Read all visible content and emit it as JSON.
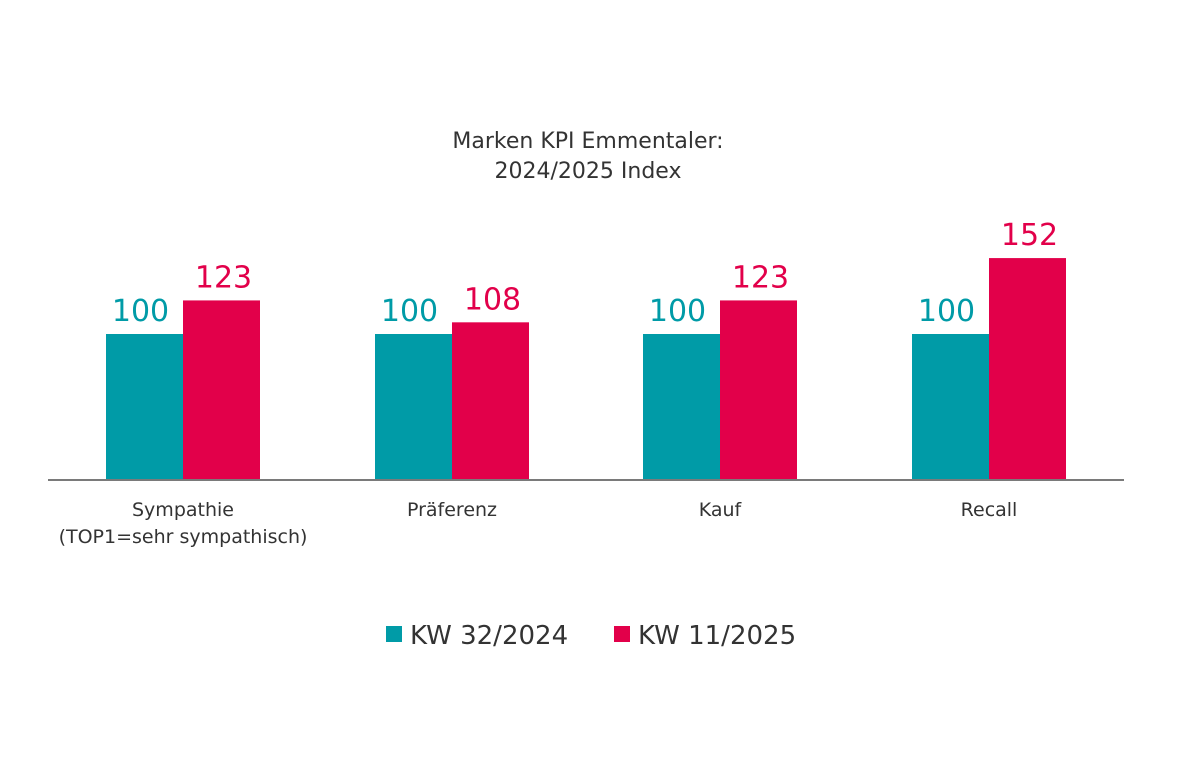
{
  "chart_data": {
    "type": "bar",
    "title": "Marken KPI Emmentaler:",
    "subtitle": "2024/2025 Index",
    "categories": [
      [
        "Sympathie",
        "(TOP1=sehr sympathisch)"
      ],
      [
        "Präferenz"
      ],
      [
        "Kauf"
      ],
      [
        "Recall"
      ]
    ],
    "series": [
      {
        "name": "KW 32/2024",
        "color": "#009ba7",
        "values": [
          100,
          100,
          100,
          100
        ]
      },
      {
        "name": "KW 11/2025",
        "color": "#e2004a",
        "values": [
          123,
          108,
          123,
          152
        ]
      }
    ],
    "ylim": [
      0,
      200
    ],
    "grid": false,
    "legend_position": "bottom",
    "xlabel": "",
    "ylabel": ""
  }
}
